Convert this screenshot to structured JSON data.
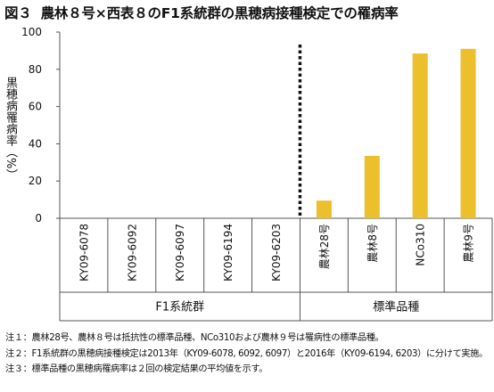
{
  "figure": {
    "number": "図３",
    "title": "農林８号×西表８のF1系統群の黒穂病接種検定での罹病率"
  },
  "chart_data": {
    "type": "bar",
    "ylabel": "黒穂病罹病率（%）",
    "ylim": [
      0,
      100
    ],
    "yticks": [
      0,
      20,
      40,
      60,
      80,
      100
    ],
    "grid": false,
    "categories": [
      "KY09-6078",
      "KY09-6092",
      "KY09-6097",
      "KY09-6194",
      "KY09-6203",
      "農林28号",
      "農林8号",
      "NCo310",
      "農林9号"
    ],
    "values": [
      0,
      0,
      0,
      0,
      0,
      9.5,
      33.5,
      88.5,
      91
    ],
    "bar_color": "#ebc02c",
    "groups": [
      {
        "label": "F1系統群",
        "categories": [
          "KY09-6078",
          "KY09-6092",
          "KY09-6097",
          "KY09-6194",
          "KY09-6203"
        ]
      },
      {
        "label": "標準品種",
        "categories": [
          "農林28号",
          "農林8号",
          "NCo310",
          "農林9号"
        ]
      }
    ],
    "separator": "dotted line between F1系統群 and 標準品種"
  },
  "notes": [
    {
      "no": "注１：",
      "text": "農林28号、農林８号は抵抗性の標準品種、NCo310および農林９号は罹病性の標準品種。"
    },
    {
      "no": "注２：",
      "text": "F1系統群の黒穂病接種検定は2013年（KY09-6078, 6092, 6097）と2016年（KY09-6194, 6203）に分けて実施。"
    },
    {
      "no": "注３：",
      "text": "標準品種の黒穂病罹病率は２回の検定結果の平均値を示す。"
    }
  ]
}
